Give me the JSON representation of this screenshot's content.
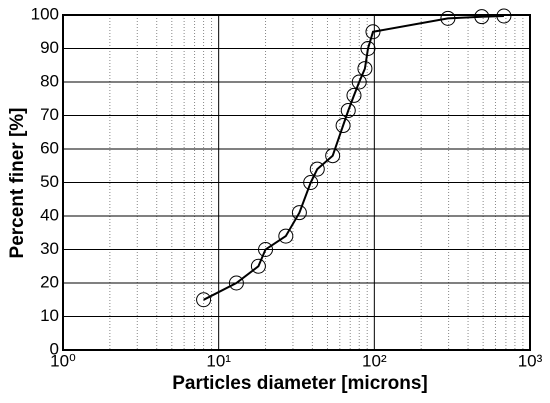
{
  "chart_data": {
    "type": "line",
    "x_label": "Particles diameter [microns]",
    "y_label": "Percent finer [%]",
    "log_x": true,
    "grid": true,
    "color": "#000000",
    "x": [
      8,
      13,
      18,
      20,
      27,
      33,
      39,
      43,
      54,
      63,
      68,
      74,
      80,
      87,
      91,
      98,
      297,
      490,
      680
    ],
    "values": [
      15,
      20,
      25,
      30,
      34,
      41,
      50,
      54,
      58,
      67,
      71.5,
      76,
      80,
      84,
      90,
      95,
      99,
      99.5,
      99.7
    ],
    "xlim": [
      1,
      1000
    ],
    "ylim": [
      0,
      100
    ],
    "xticks": [
      {
        "value": 1,
        "label": "10⁰"
      },
      {
        "value": 10,
        "label": "10¹"
      },
      {
        "value": 100,
        "label": "10²"
      },
      {
        "value": 1000,
        "label": "10³"
      }
    ],
    "x_minor_ticks": [
      2,
      3,
      4,
      5,
      6,
      7,
      8,
      9,
      20,
      30,
      40,
      50,
      60,
      70,
      80,
      90,
      200,
      300,
      400,
      500,
      600,
      700,
      800,
      900
    ],
    "yticks": [
      0,
      10,
      20,
      30,
      40,
      50,
      60,
      70,
      80,
      90,
      100
    ]
  }
}
